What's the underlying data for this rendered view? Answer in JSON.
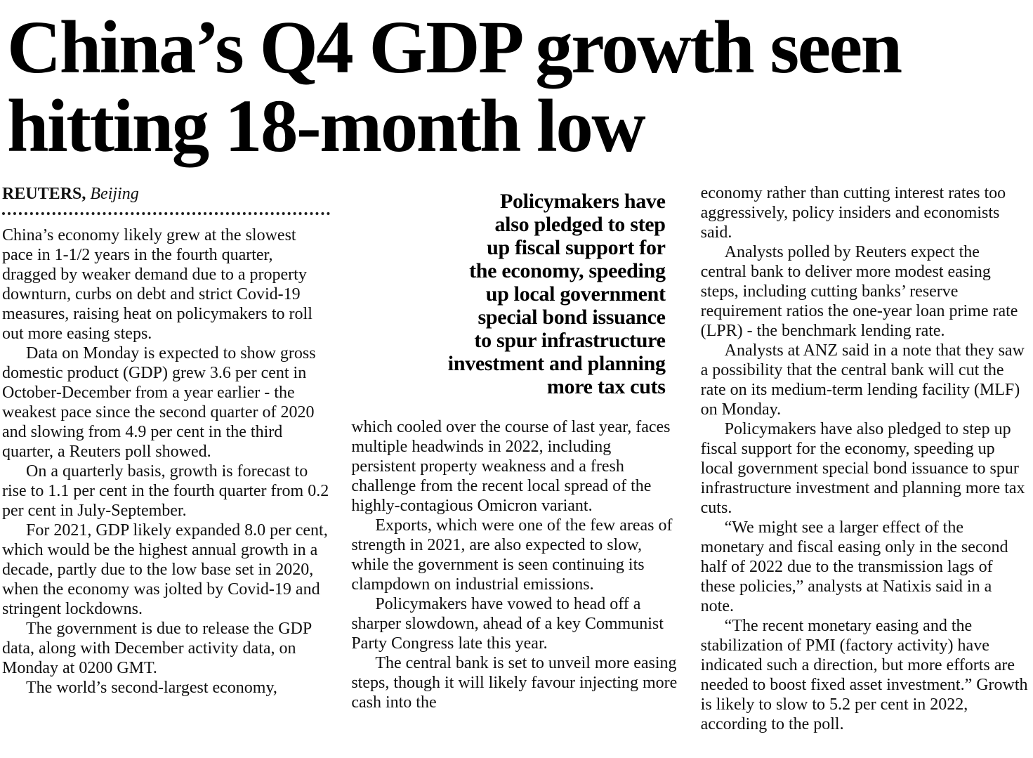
{
  "colors": {
    "ink": "#111111",
    "paper": "#ffffff"
  },
  "article": {
    "headline": "China’s Q4 GDP growth seen\nhitting 18-month low",
    "byline": {
      "source": "REUTERS,",
      "location": "Beijing"
    },
    "pull_quote": "Policymakers have\nalso pledged to step\nup fiscal support for\nthe economy, speeding\nup local government\nspecial bond issuance\nto spur infrastructure\ninvestment and planning\nmore tax cuts",
    "columns": [
      {
        "paragraphs": [
          "China’s economy likely grew at the slowest pace in 1-1/2 years in the fourth quarter, dragged by weaker demand due to a property downturn, curbs on debt and strict Covid-19 measures, raising heat on policymakers to roll out more easing steps.",
          "Data on Monday is expected to show gross domestic product (GDP) grew 3.6 per cent in October-December from a year earlier - the weakest pace since the second quarter of 2020 and slowing from 4.9 per cent in the third quarter, a Reuters poll showed.",
          "On a quarterly basis, growth is forecast to rise to 1.1 per cent in the fourth quarter from 0.2 per cent in July-September.",
          "For 2021, GDP likely expanded 8.0 per cent, which would be the highest annual growth in a decade, partly due to the low base set in 2020, when the economy was jolted by Covid-19 and stringent lockdowns.",
          "The government is due to release the GDP data, along with December activity data, on Monday at 0200 GMT.",
          "The world’s second-largest economy,"
        ]
      },
      {
        "paragraphs": [
          "which cooled over the course of last year, faces multiple headwinds in 2022, including persistent property weakness and a fresh challenge from the recent local spread of the highly-contagious Omicron variant.",
          "Exports, which were one of the few areas of strength in 2021, are also expected to slow, while the government is seen continuing its clampdown on industrial emissions.",
          "Policymakers have vowed to head off a sharper slowdown, ahead of a key Communist Party Congress late this year.",
          "The central bank is set to unveil more easing steps, though it will likely favour injecting more cash into the"
        ]
      },
      {
        "paragraphs": [
          "economy rather than cutting interest rates too aggressively, policy insiders and economists said.",
          "Analysts polled by Reuters expect the central bank to deliver more modest easing steps, including cutting banks’ reserve requirement ratios the one-year loan prime rate (LPR) - the benchmark lending rate.",
          "Analysts at ANZ said in a note that they saw a possibility that the central bank will cut the rate on its medium-term lending facility (MLF) on Monday.",
          "Policymakers have also pledged to step up fiscal support for the economy, speeding up local government special bond issuance to spur infrastructure investment and planning more tax cuts.",
          "“We might see a larger effect of the monetary and fiscal easing only in the second half of 2022 due to the transmission lags of these policies,” analysts at Natixis said in a note.",
          "“The recent monetary easing and the stabilization of PMI (factory activity) have indicated such a direction, but more efforts are needed to boost fixed asset investment.”  Growth is likely to slow to 5.2 per cent in 2022, according to the poll."
        ]
      }
    ]
  }
}
